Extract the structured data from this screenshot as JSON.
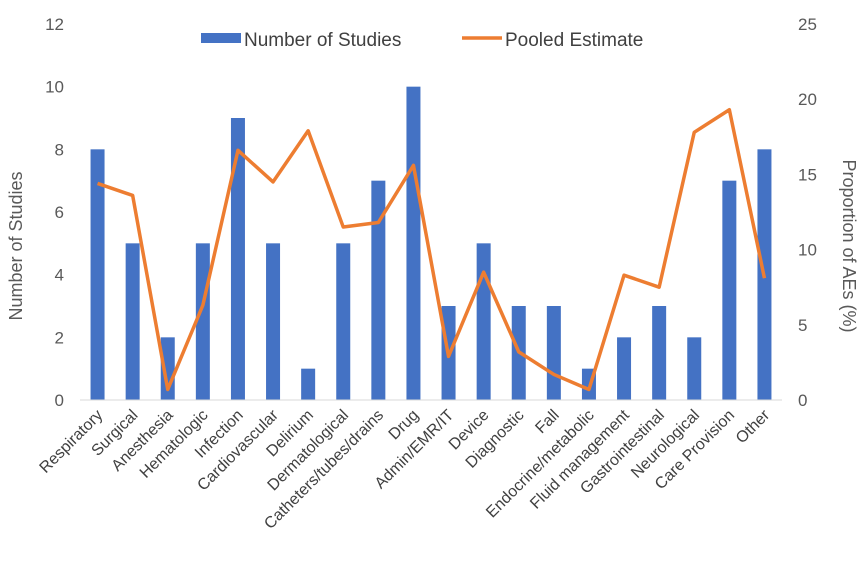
{
  "chart_data": {
    "type": "bar",
    "categories": [
      "Respiratory",
      "Surgical",
      "Anesthesia",
      "Hematologic",
      "Infection",
      "Cardiovascular",
      "Delirium",
      "Dermatological",
      "Catheters/tubes/drains",
      "Drug",
      "Admin/EMR/IT",
      "Device",
      "Diagnostic",
      "Fall",
      "Endocrine/metabolic",
      "Fluid management",
      "Gastrointestinal",
      "Neurological",
      "Care Provision",
      "Other"
    ],
    "series": [
      {
        "name": "Number of Studies",
        "type": "bar",
        "axis": "left",
        "color": "#4472C4",
        "values": [
          8,
          5,
          2,
          5,
          9,
          5,
          1,
          5,
          7,
          10,
          3,
          5,
          3,
          3,
          1,
          2,
          3,
          2,
          7,
          8
        ]
      },
      {
        "name": "Pooled Estimate",
        "type": "line",
        "axis": "right",
        "color": "#ED7D31",
        "values": [
          14.4,
          13.6,
          0.7,
          6.3,
          16.6,
          14.5,
          17.9,
          11.5,
          11.8,
          15.6,
          2.9,
          8.5,
          3.2,
          1.7,
          0.7,
          8.3,
          7.5,
          17.8,
          19.3,
          8.1
        ]
      }
    ],
    "ylabel": "Number of Studies",
    "ylim": [
      0,
      12
    ],
    "yticks": [
      "0",
      "2",
      "4",
      "6",
      "8",
      "10",
      "12"
    ],
    "y2label": "Proportion of AEs (%)",
    "y2lim": [
      0,
      25
    ],
    "y2ticks": [
      "0",
      "5",
      "10",
      "15",
      "20",
      "25"
    ],
    "grid": false,
    "legend_position": "top-center"
  }
}
